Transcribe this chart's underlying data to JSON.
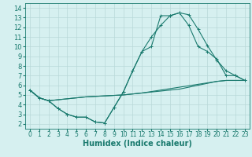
{
  "x_values": [
    0,
    1,
    2,
    3,
    4,
    5,
    6,
    7,
    8,
    9,
    10,
    11,
    12,
    13,
    14,
    15,
    16,
    17,
    18,
    19,
    20,
    21,
    22,
    23
  ],
  "line1": [
    5.5,
    4.7,
    4.4,
    3.6,
    3.0,
    2.7,
    2.7,
    2.2,
    2.1,
    3.7,
    5.3,
    7.5,
    9.5,
    11.0,
    12.2,
    13.2,
    13.5,
    13.3,
    11.8,
    10.1,
    8.6,
    7.5,
    7.0,
    6.5
  ],
  "line2": [
    5.5,
    4.7,
    4.4,
    3.6,
    3.0,
    2.7,
    2.7,
    2.2,
    2.1,
    3.7,
    5.3,
    7.5,
    9.5,
    10.0,
    13.2,
    13.2,
    13.5,
    12.2,
    10.0,
    9.5,
    8.7,
    7.0,
    7.0,
    6.5
  ],
  "line3": [
    5.5,
    4.7,
    4.4,
    4.5,
    4.6,
    4.7,
    4.8,
    4.85,
    4.9,
    4.95,
    5.0,
    5.1,
    5.2,
    5.3,
    5.4,
    5.5,
    5.6,
    5.8,
    6.0,
    6.2,
    6.4,
    6.5,
    6.5,
    6.5
  ],
  "line4": [
    5.5,
    4.7,
    4.4,
    4.5,
    4.6,
    4.7,
    4.8,
    4.85,
    4.9,
    4.95,
    5.0,
    5.1,
    5.2,
    5.35,
    5.5,
    5.65,
    5.8,
    5.95,
    6.1,
    6.25,
    6.4,
    6.5,
    6.5,
    6.5
  ],
  "color": "#1a7a6e",
  "bg_color": "#d6f0f0",
  "grid_color": "#b8d8d8",
  "ylim": [
    1.5,
    14.5
  ],
  "xlim": [
    -0.5,
    23.5
  ],
  "yticks": [
    2,
    3,
    4,
    5,
    6,
    7,
    8,
    9,
    10,
    11,
    12,
    13,
    14
  ],
  "xticks": [
    0,
    1,
    2,
    3,
    4,
    5,
    6,
    7,
    8,
    9,
    10,
    11,
    12,
    13,
    14,
    15,
    16,
    17,
    18,
    19,
    20,
    21,
    22,
    23
  ],
  "xlabel": "Humidex (Indice chaleur)",
  "xlabel_fontsize": 7,
  "marker": "+"
}
